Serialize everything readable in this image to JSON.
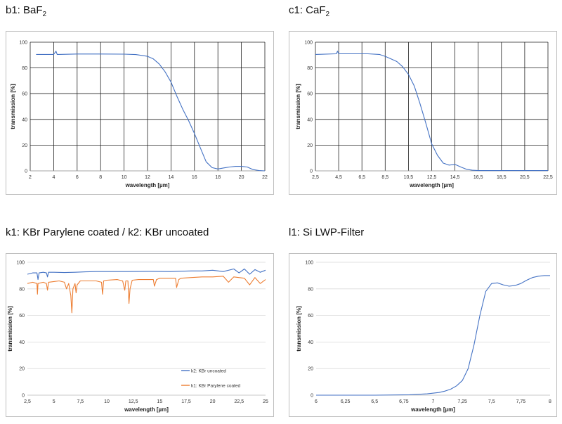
{
  "titles": {
    "b1": {
      "main": "b1: BaF",
      "sub": "2"
    },
    "c1": {
      "main": "c1: CaF",
      "sub": "2"
    },
    "k": {
      "main": "k1: KBr Parylene coated / k2: KBr uncoated",
      "sub": ""
    },
    "l1": {
      "main": "l1: Si LWP-Filter",
      "sub": ""
    }
  },
  "colors": {
    "blue": "#4472C4",
    "orange": "#ED7D31"
  },
  "chart_data": [
    {
      "id": "b1",
      "type": "line",
      "xlabel": "wavelength [µm]",
      "ylabel": "transmission [%]",
      "xlim": [
        2,
        22
      ],
      "ylim": [
        0,
        100
      ],
      "xticks": [
        2,
        4,
        6,
        8,
        10,
        12,
        14,
        16,
        18,
        20,
        22
      ],
      "xtick_labels": [
        "2",
        "4",
        "6",
        "8",
        "10",
        "12",
        "14",
        "16",
        "18",
        "20",
        "22"
      ],
      "yticks": [
        0,
        20,
        40,
        60,
        80,
        100
      ],
      "vgrid": true,
      "series": [
        {
          "color": "#4472C4",
          "x": [
            2.5,
            4.0,
            4.2,
            4.3,
            4.4,
            6,
            8,
            10,
            11,
            12,
            12.5,
            13,
            13.5,
            14,
            14.5,
            15,
            15.5,
            16,
            16.5,
            17,
            17.5,
            18,
            18.5,
            19,
            19.5,
            20,
            20.5,
            21,
            21.5,
            22
          ],
          "y": [
            90.5,
            90.5,
            93,
            90.5,
            90.5,
            90.8,
            90.8,
            90.7,
            90.4,
            89,
            87,
            83,
            77,
            69,
            58,
            48,
            39,
            29,
            18,
            7,
            2.5,
            1.5,
            2.3,
            3,
            3.5,
            3.5,
            3,
            1,
            0.3,
            0
          ]
        }
      ]
    },
    {
      "id": "c1",
      "type": "line",
      "xlabel": "wavelength [µm]",
      "ylabel": "transmission [%]",
      "xlim": [
        2.5,
        22.5
      ],
      "ylim": [
        0,
        100
      ],
      "xticks": [
        2.5,
        4.5,
        6.5,
        8.5,
        10.5,
        12.5,
        14.5,
        16.5,
        18.5,
        20.5,
        22.5
      ],
      "xtick_labels": [
        "2,5",
        "4,5",
        "6,5",
        "8,5",
        "10,5",
        "12,5",
        "14,5",
        "16,5",
        "18,5",
        "20,5",
        "22,5"
      ],
      "yticks": [
        0,
        20,
        40,
        60,
        80,
        100
      ],
      "vgrid": true,
      "series": [
        {
          "color": "#4472C4",
          "x": [
            2.5,
            4.3,
            4.4,
            4.5,
            6,
            7,
            8,
            8.5,
            9,
            9.5,
            10,
            10.5,
            11,
            11.5,
            12,
            12.5,
            13,
            13.5,
            14,
            14.5,
            15,
            15.5,
            16,
            16.5,
            18,
            20,
            22.5
          ],
          "y": [
            90.5,
            91,
            93,
            91,
            91,
            91,
            90.5,
            89,
            87,
            85,
            81,
            75,
            66,
            52,
            37,
            21,
            12,
            6,
            4.5,
            5,
            3,
            1.2,
            0.5,
            0.2,
            0.2,
            0.2,
            0.2
          ]
        }
      ]
    },
    {
      "id": "k",
      "type": "line",
      "xlabel": "wavelength [µm]",
      "ylabel": "transmission [%]",
      "xlim": [
        2.5,
        25
      ],
      "ylim": [
        0,
        100
      ],
      "xticks": [
        2.5,
        5,
        7.5,
        10,
        12.5,
        15,
        17.5,
        20,
        22.5,
        25
      ],
      "xtick_labels": [
        "2,5",
        "5",
        "7,5",
        "10",
        "12,5",
        "15",
        "17,5",
        "20",
        "22,5",
        "25"
      ],
      "yticks": [
        0,
        20,
        40,
        60,
        80,
        100
      ],
      "vgrid": false,
      "legend": {
        "position": "lower-middle",
        "items": [
          "k2: KBr uncoated",
          "k1: KBr Parylene coated"
        ]
      },
      "series": [
        {
          "name": "k2: KBr uncoated",
          "color": "#4472C4",
          "x": [
            2.5,
            3,
            3.4,
            3.5,
            3.6,
            4,
            4.3,
            4.4,
            4.5,
            5,
            6,
            7,
            8,
            9,
            10,
            12,
            14,
            16,
            18,
            19,
            20,
            21,
            22,
            22.5,
            23,
            23.5,
            24,
            24.5,
            25
          ],
          "y": [
            91,
            92,
            92,
            87,
            92,
            92.5,
            92,
            89,
            92.5,
            92.5,
            92.3,
            92.5,
            92.8,
            93,
            93,
            93,
            93.2,
            93,
            93.5,
            93.5,
            94,
            93,
            95,
            92,
            95,
            91,
            94.5,
            92.5,
            94
          ]
        },
        {
          "name": "k1: KBr Parylene coated",
          "color": "#ED7D31",
          "x": [
            2.5,
            3,
            3.4,
            3.45,
            3.5,
            4,
            4.3,
            4.4,
            4.5,
            5,
            5.5,
            6,
            6.2,
            6.4,
            6.6,
            6.7,
            6.8,
            7,
            7.1,
            7.2,
            7.4,
            7.5,
            8,
            9,
            9.5,
            9.6,
            9.7,
            10,
            11,
            11.5,
            11.7,
            11.8,
            12,
            12.1,
            12.2,
            12.4,
            13,
            14,
            14.4,
            14.5,
            14.7,
            15,
            16,
            16.5,
            16.6,
            16.8,
            17,
            18,
            19,
            20,
            21,
            21.5,
            22,
            23,
            23.5,
            24,
            24.5,
            25
          ],
          "y": [
            84,
            85,
            84,
            76,
            84,
            85,
            84,
            79,
            85,
            85.5,
            86,
            85,
            80,
            84,
            75,
            62,
            80,
            84,
            77,
            83,
            85,
            86,
            86,
            86,
            85,
            76,
            86,
            86.5,
            87,
            86,
            79,
            86,
            86,
            69,
            80,
            86.5,
            87,
            87,
            87,
            82,
            87,
            88,
            88,
            88,
            81,
            87,
            88,
            88.5,
            89,
            89,
            89.5,
            85,
            89,
            88,
            83,
            88.5,
            84,
            87
          ]
        }
      ]
    },
    {
      "id": "l1",
      "type": "line",
      "xlabel": "wavelength [µm]",
      "ylabel": "transmission [%]",
      "xlim": [
        6,
        8
      ],
      "ylim": [
        0,
        100
      ],
      "xticks": [
        6,
        6.25,
        6.5,
        6.75,
        7,
        7.25,
        7.5,
        7.75,
        8
      ],
      "xtick_labels": [
        "6",
        "6,25",
        "6,5",
        "6,75",
        "7",
        "7,25",
        "7,5",
        "7,75",
        "8"
      ],
      "yticks": [
        0,
        20,
        40,
        60,
        80,
        100
      ],
      "vgrid": false,
      "series": [
        {
          "color": "#4472C4",
          "x": [
            6,
            6.5,
            6.8,
            6.95,
            7.05,
            7.1,
            7.15,
            7.2,
            7.25,
            7.3,
            7.35,
            7.4,
            7.45,
            7.5,
            7.55,
            7.6,
            7.65,
            7.7,
            7.75,
            7.8,
            7.85,
            7.9,
            7.95,
            8
          ],
          "y": [
            0,
            0,
            0.3,
            1,
            2,
            3,
            4.5,
            7,
            11,
            20,
            38,
            60,
            78,
            84,
            84.5,
            83,
            82,
            82.5,
            84,
            86.5,
            88.5,
            89.5,
            90,
            90
          ]
        }
      ]
    }
  ]
}
